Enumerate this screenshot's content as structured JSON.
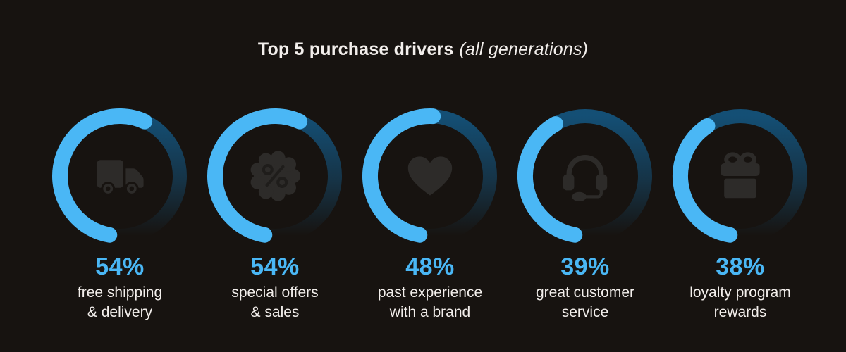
{
  "title": {
    "main": "Top 5 purchase drivers",
    "suffix": "(all generations)"
  },
  "colors": {
    "background": "#171310",
    "accent_blue": "#4ab7f5",
    "track_blue": "#14527a",
    "icon_fill": "#2d2b29",
    "icon_detail": "#1f1d1b",
    "text": "#f3efec"
  },
  "chart_data": {
    "type": "donut-progress",
    "title": "Top 5 purchase drivers (all generations)",
    "unit": "%",
    "legend_position": "below-each-ring",
    "ring": {
      "start_angle_deg": 100,
      "direction": "clockwise",
      "max": 100
    },
    "items": [
      {
        "value": 54,
        "label_lines": [
          "free shipping",
          "& delivery"
        ],
        "icon": "truck-icon"
      },
      {
        "value": 54,
        "label_lines": [
          "special offers",
          "& sales"
        ],
        "icon": "percent-badge-icon"
      },
      {
        "value": 48,
        "label_lines": [
          "past experience",
          "with a brand"
        ],
        "icon": "heart-icon"
      },
      {
        "value": 39,
        "label_lines": [
          "great customer",
          "service"
        ],
        "icon": "headset-icon"
      },
      {
        "value": 38,
        "label_lines": [
          "loyalty program",
          "rewards"
        ],
        "icon": "gift-icon"
      }
    ]
  }
}
